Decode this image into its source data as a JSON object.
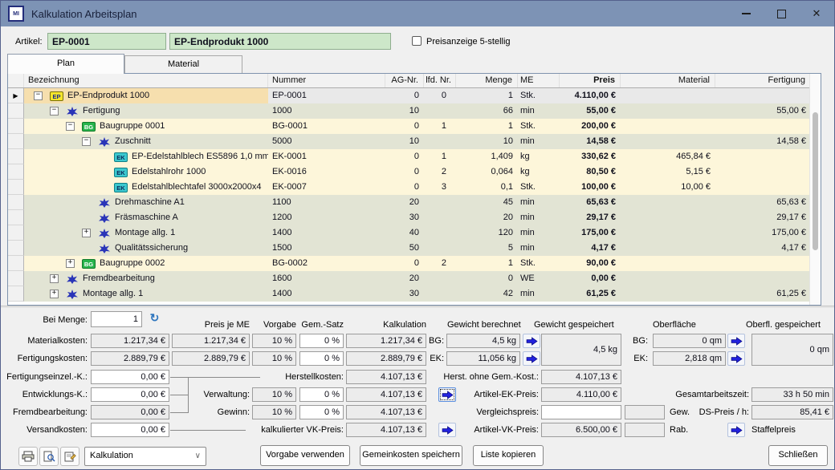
{
  "window": {
    "title": "Kalkulation Arbeitsplan",
    "app_icon_text": "MI"
  },
  "header": {
    "artikel_label": "Artikel:",
    "artikel_nr": "EP-0001",
    "artikel_name": "EP-Endprodukt 1000",
    "price_checkbox_label": "Preisanzeige 5-stellig",
    "price_checkbox_checked": false
  },
  "tabs": [
    {
      "label": "Plan",
      "active": true
    },
    {
      "label": "Material",
      "active": false
    }
  ],
  "grid": {
    "columns": [
      "Bezeichnung",
      "Nummer",
      "AG-Nr.",
      "lfd. Nr.",
      "Menge",
      "ME",
      "Preis",
      "Material",
      "Fertigung"
    ],
    "rows": [
      {
        "level": 0,
        "expand": "minus",
        "icon": "EP",
        "bezeichnung": "EP-Endprodukt 1000",
        "nummer": "EP-0001",
        "ag_nr": "0",
        "lfd_nr": "0",
        "menge": "1",
        "me": "Stk.",
        "preis": "4.110,00 €",
        "material": "",
        "fertigung": "",
        "selected": true
      },
      {
        "level": 1,
        "expand": "minus",
        "icon": "OP",
        "bezeichnung": "Fertigung",
        "nummer": "1000",
        "ag_nr": "10",
        "lfd_nr": "",
        "menge": "66",
        "me": "min",
        "preis": "55,00 €",
        "material": "",
        "fertigung": "55,00 €"
      },
      {
        "level": 2,
        "expand": "minus",
        "icon": "BG",
        "bezeichnung": "Baugruppe 0001",
        "nummer": "BG-0001",
        "ag_nr": "0",
        "lfd_nr": "1",
        "menge": "1",
        "me": "Stk.",
        "preis": "200,00 €",
        "material": "",
        "fertigung": ""
      },
      {
        "level": 3,
        "expand": "minus",
        "icon": "OP",
        "bezeichnung": "Zuschnitt",
        "nummer": "5000",
        "ag_nr": "10",
        "lfd_nr": "",
        "menge": "10",
        "me": "min",
        "preis": "14,58 €",
        "material": "",
        "fertigung": "14,58 €"
      },
      {
        "level": 4,
        "expand": null,
        "icon": "EK",
        "bezeichnung": "EP-Edelstahlblech ES5896 1,0 mm",
        "nummer": "EK-0001",
        "ag_nr": "0",
        "lfd_nr": "1",
        "menge": "1,409",
        "me": "kg",
        "preis": "330,62 €",
        "material": "465,84 €",
        "fertigung": ""
      },
      {
        "level": 4,
        "expand": null,
        "icon": "EK",
        "bezeichnung": "Edelstahlrohr 1000",
        "nummer": "EK-0016",
        "ag_nr": "0",
        "lfd_nr": "2",
        "menge": "0,064",
        "me": "kg",
        "preis": "80,50 €",
        "material": "5,15 €",
        "fertigung": ""
      },
      {
        "level": 4,
        "expand": null,
        "icon": "EK",
        "bezeichnung": "Edelstahlblechtafel 3000x2000x4",
        "nummer": "EK-0007",
        "ag_nr": "0",
        "lfd_nr": "3",
        "menge": "0,1",
        "me": "Stk.",
        "preis": "100,00 €",
        "material": "10,00 €",
        "fertigung": ""
      },
      {
        "level": 3,
        "expand": null,
        "icon": "OP",
        "bezeichnung": "Drehmaschine A1",
        "nummer": "1100",
        "ag_nr": "20",
        "lfd_nr": "",
        "menge": "45",
        "me": "min",
        "preis": "65,63 €",
        "material": "",
        "fertigung": "65,63 €"
      },
      {
        "level": 3,
        "expand": null,
        "icon": "OP",
        "bezeichnung": "Fräsmaschine A",
        "nummer": "1200",
        "ag_nr": "30",
        "lfd_nr": "",
        "menge": "20",
        "me": "min",
        "preis": "29,17 €",
        "material": "",
        "fertigung": "29,17 €"
      },
      {
        "level": 3,
        "expand": "plus",
        "icon": "OP",
        "bezeichnung": "Montage allg. 1",
        "nummer": "1400",
        "ag_nr": "40",
        "lfd_nr": "",
        "menge": "120",
        "me": "min",
        "preis": "175,00 €",
        "material": "",
        "fertigung": "175,00 €"
      },
      {
        "level": 3,
        "expand": null,
        "icon": "OP",
        "bezeichnung": "Qualitätssicherung",
        "nummer": "1500",
        "ag_nr": "50",
        "lfd_nr": "",
        "menge": "5",
        "me": "min",
        "preis": "4,17 €",
        "material": "",
        "fertigung": "4,17 €"
      },
      {
        "level": 2,
        "expand": "plus",
        "icon": "BG",
        "bezeichnung": "Baugruppe 0002",
        "nummer": "BG-0002",
        "ag_nr": "0",
        "lfd_nr": "2",
        "menge": "1",
        "me": "Stk.",
        "preis": "90,00 €",
        "material": "",
        "fertigung": ""
      },
      {
        "level": 1,
        "expand": "plus",
        "icon": "OP",
        "bezeichnung": "Fremdbearbeitung",
        "nummer": "1600",
        "ag_nr": "20",
        "lfd_nr": "",
        "menge": "0",
        "me": "WE",
        "preis": "0,00 €",
        "material": "",
        "fertigung": ""
      },
      {
        "level": 1,
        "expand": "plus",
        "icon": "OP",
        "bezeichnung": "Montage allg. 1",
        "nummer": "1400",
        "ag_nr": "30",
        "lfd_nr": "",
        "menge": "42",
        "me": "min",
        "preis": "61,25 €",
        "material": "",
        "fertigung": "61,25 €"
      }
    ]
  },
  "panel": {
    "bei_menge_label": "Bei Menge:",
    "bei_menge_value": "1",
    "col_headers": {
      "preis_je_me": "Preis je ME",
      "vorgabe": "Vorgabe",
      "gem_satz": "Gem.-Satz",
      "kalkulation": "Kalkulation",
      "gewicht_berechnet": "Gewicht berechnet",
      "gewicht_gespeichert": "Gewicht gespeichert",
      "oberflaeche": "Oberfläche",
      "oberfl_gespeichert": "Oberfl. gespeichert"
    },
    "rows": {
      "material": {
        "label": "Materialkosten:",
        "wert": "1.217,34 €",
        "preis_je_me": "1.217,34 €",
        "vorgabe": "10 %",
        "gem_satz": "0 %",
        "kalkulation": "1.217,34 €"
      },
      "fertigung": {
        "label": "Fertigungskosten:",
        "wert": "2.889,79 €",
        "preis_je_me": "2.889,79 €",
        "vorgabe": "10 %",
        "gem_satz": "0 %",
        "kalkulation": "2.889,79 €"
      },
      "fertigungseinzel": {
        "label": "Fertigungseinzel.-K.:",
        "wert": "0,00 €"
      },
      "entwicklung": {
        "label": "Entwicklungs-K.:",
        "wert": "0,00 €"
      },
      "fremdbearbeitung": {
        "label": "Fremdbearbeitung:",
        "wert": "0,00 €"
      },
      "versand": {
        "label": "Versandkosten:",
        "wert": "0,00 €"
      },
      "herstellkosten": {
        "label": "Herstellkosten:",
        "kalkulation": "4.107,13 €"
      },
      "verwaltung": {
        "label": "Verwaltung:",
        "vorgabe": "10 %",
        "gem_satz": "0 %",
        "kalkulation": "4.107,13 €"
      },
      "gewinn": {
        "label": "Gewinn:",
        "vorgabe": "10 %",
        "gem_satz": "0 %",
        "kalkulation": "4.107,13 €"
      },
      "kalk_vk": {
        "label": "kalkulierter VK-Preis:",
        "kalkulation": "4.107,13 €"
      }
    },
    "gewicht": {
      "bg_label": "BG:",
      "bg_value": "4,5 kg",
      "ek_label": "EK:",
      "ek_value": "11,056 kg",
      "gespeichert": "4,5 kg"
    },
    "oberflaeche": {
      "bg_label": "BG:",
      "bg_value": "0 qm",
      "ek_label": "EK:",
      "ek_value": "2,818 qm",
      "gespeichert": "0 qm"
    },
    "right": {
      "herst_ohne_gem": {
        "label": "Herst. ohne Gem.-Kost.:",
        "value": "4.107,13 €"
      },
      "artikel_ek": {
        "label": "Artikel-EK-Preis:",
        "value": "4.110,00 €"
      },
      "vergleichspreis": {
        "label": "Vergleichspreis:",
        "value": ""
      },
      "artikel_vk": {
        "label": "Artikel-VK-Preis:",
        "value": "6.500,00 €"
      },
      "gesamtarbeitszeit": {
        "label": "Gesamtarbeitszeit:",
        "value": "33 h 50 min"
      },
      "gew_label": "Gew.",
      "ds_preis": {
        "label": "DS-Preis / h:",
        "value": "85,41 €"
      },
      "rab_label": "Rab.",
      "staffelpreis_label": "Staffelpreis"
    }
  },
  "toolbar": {
    "dropdown_value": "Kalkulation",
    "buttons": [
      "Vorgabe verwenden",
      "Gemeinkosten speichern",
      "Liste kopieren"
    ],
    "close_button": "Schließen"
  },
  "colors": {
    "titlebar": "#7d93b5",
    "row_selected": "#f6dfae",
    "row_operation": "#e2e4d4",
    "row_item": "#fdf6da",
    "artikel_field": "#cde7c9",
    "arrow_blue": "#2222dd"
  }
}
